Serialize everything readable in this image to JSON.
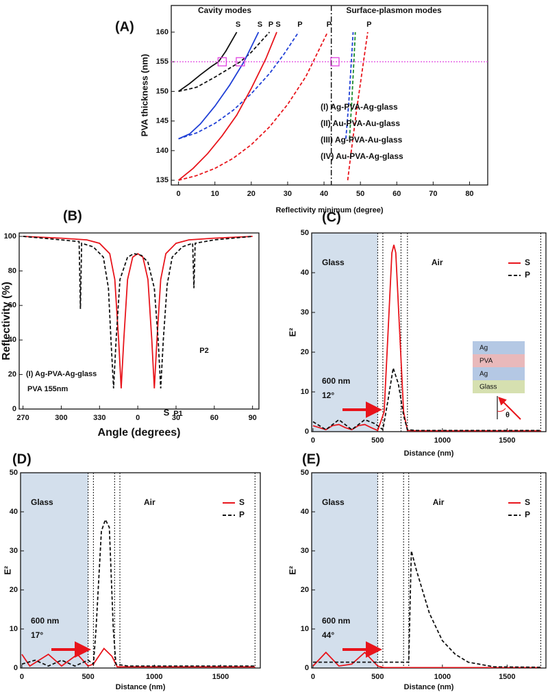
{
  "chart_data": [
    {
      "type": "line",
      "panel": "(A)",
      "x_label": "Reflectivity minimum (degree)",
      "y_label": "PVA thickness (nm)",
      "xlim": [
        -2,
        85
      ],
      "ylim": [
        134.2,
        164.5
      ],
      "xticks": [
        0,
        10,
        20,
        30,
        40,
        50,
        60,
        70,
        80
      ],
      "yticks": [
        135,
        140,
        145,
        150,
        155,
        160
      ],
      "headers": [
        "Cavity modes",
        "Surface-plasmon modes"
      ],
      "legend": [
        {
          "text": "(I) Ag-PVA-Ag-glass",
          "color": "#111111"
        },
        {
          "text": "(II) Au-PVA-Au-glass",
          "color": "#e8141b"
        },
        {
          "text": "(III) Ag-PVA-Au-glass",
          "color": "#1f3fd6"
        },
        {
          "text": "(IV) Au-PVA-Ag-glass",
          "color": "#1a8a2a"
        }
      ],
      "vline": 42,
      "hline": 155,
      "markers": {
        "x": [
          12,
          17,
          43
        ],
        "y": [
          155,
          155,
          155
        ]
      },
      "series": [
        {
          "label": "S",
          "color": "#111111",
          "dashed": false,
          "x": [
            0,
            3,
            6,
            9,
            11,
            13,
            16
          ],
          "values": [
            150,
            151.3,
            152.8,
            154.2,
            155,
            156.8,
            160
          ]
        },
        {
          "label": "P",
          "color": "#111111",
          "dashed": true,
          "x": [
            0,
            5,
            10,
            14,
            17,
            20,
            25
          ],
          "values": [
            150,
            150.7,
            152.4,
            153.9,
            155,
            156.6,
            160
          ]
        },
        {
          "label": "S",
          "color": "#1f3fd6",
          "dashed": false,
          "x": [
            0,
            3,
            6,
            10,
            14,
            18,
            22
          ],
          "values": [
            142,
            142.8,
            144.5,
            147.5,
            151,
            155,
            160
          ]
        },
        {
          "label": "P",
          "color": "#1f3fd6",
          "dashed": true,
          "x": [
            0,
            5,
            10,
            15,
            20,
            25,
            29,
            33
          ],
          "values": [
            142,
            143,
            144.6,
            146.8,
            149.6,
            153,
            156.3,
            160
          ]
        },
        {
          "label": "S",
          "color": "#e8141b",
          "dashed": false,
          "x": [
            0,
            4,
            8,
            12,
            16,
            20,
            24,
            27
          ],
          "values": [
            135,
            137,
            139.5,
            142.5,
            146,
            150.5,
            155.5,
            160
          ]
        },
        {
          "label": "P",
          "color": "#e8141b",
          "dashed": true,
          "x": [
            0,
            5,
            10,
            15,
            20,
            25,
            30,
            35,
            41
          ],
          "values": [
            135,
            135.8,
            137,
            138.7,
            141,
            144,
            147.8,
            152.5,
            160
          ]
        },
        {
          "label": "P",
          "color": "#e8141b",
          "dashed": true,
          "x": [
            46.5,
            47.5,
            49,
            50.5,
            52
          ],
          "values": [
            135,
            140,
            147,
            153.5,
            160
          ]
        },
        {
          "color": "#1f3fd6",
          "dashed": true,
          "x": [
            46,
            46.8,
            47.5,
            48
          ],
          "values": [
            142,
            148,
            155,
            160
          ]
        },
        {
          "color": "#1a8a2a",
          "dashed": true,
          "x": [
            47,
            47.6,
            48.2,
            48.6
          ],
          "values": [
            142,
            148,
            155,
            160
          ]
        }
      ]
    },
    {
      "type": "line",
      "panel": "(B)",
      "x_label": "Angle (degrees)",
      "y_label": "Reflectivity (%)",
      "xlim": [
        -93,
        95
      ],
      "ylim": [
        0,
        102
      ],
      "xticks": [
        {
          "value": -90,
          "label": "270"
        },
        {
          "value": -60,
          "label": "300"
        },
        {
          "value": -30,
          "label": "330"
        },
        0,
        30,
        60,
        90
      ],
      "yticks": [
        0,
        20,
        40,
        60,
        80,
        100
      ],
      "annotations": [
        "S",
        "P1",
        "P2",
        "(I) Ag-PVA-Ag-glass",
        "PVA 155nm"
      ],
      "series": [
        {
          "color": "#e8141b",
          "dashed": false,
          "x": [
            -90,
            -60,
            -40,
            -30,
            -22,
            -18,
            -15,
            -13,
            -11,
            -8,
            -4,
            0,
            4,
            8,
            11,
            13,
            15,
            18,
            22,
            30,
            40,
            60,
            90
          ],
          "values": [
            100,
            99,
            98,
            96,
            90,
            75,
            40,
            12,
            40,
            75,
            88,
            90,
            88,
            75,
            40,
            12,
            40,
            75,
            90,
            96,
            98,
            99,
            100
          ]
        },
        {
          "color": "#111111",
          "dashed": true,
          "x": [
            -90,
            -60,
            -46,
            -45,
            -44,
            -35,
            -27,
            -23,
            -21,
            -19,
            -17,
            -14,
            -8,
            -3,
            3,
            8,
            13,
            16,
            18,
            20,
            23,
            27,
            35,
            43,
            44,
            45,
            60,
            90
          ],
          "values": [
            100,
            98,
            97,
            58,
            96,
            94,
            88,
            70,
            40,
            12,
            40,
            75,
            88,
            90,
            89,
            85,
            70,
            40,
            12,
            40,
            72,
            88,
            94,
            96,
            70,
            96,
            98,
            100
          ]
        }
      ]
    },
    {
      "type": "line",
      "panel": "(C)",
      "x_label": "Distance (nm)",
      "y_label": "E²",
      "xlim": [
        -10,
        1800
      ],
      "ylim": [
        0,
        50
      ],
      "xticks": [
        0,
        500,
        1000,
        1500
      ],
      "yticks": [
        0,
        10,
        20,
        30,
        40,
        50
      ],
      "glass_label": "Glass",
      "air_label": "Air",
      "wavelength": "600 nm",
      "angle": "12°",
      "boundaries": [
        500,
        540,
        680,
        730,
        1760
      ],
      "layers": [
        "Ag",
        "PVA",
        "Ag",
        "Glass"
      ],
      "theta": "θ",
      "series": [
        {
          "name": "S",
          "color": "#e8141b",
          "dashed": false,
          "x": [
            0,
            50,
            100,
            150,
            200,
            250,
            300,
            350,
            400,
            450,
            500,
            550,
            580,
            610,
            625,
            640,
            670,
            700,
            730,
            800,
            1760
          ],
          "values": [
            1.5,
            1,
            0.5,
            1.5,
            1.8,
            1,
            0.5,
            1.5,
            1.8,
            1,
            0.3,
            5,
            25,
            45,
            47,
            45,
            25,
            5,
            0.3,
            0.2,
            0.2
          ]
        },
        {
          "name": "P",
          "color": "#111111",
          "dashed": true,
          "x": [
            0,
            100,
            200,
            300,
            400,
            480,
            540,
            580,
            620,
            660,
            700,
            730,
            800,
            1760
          ],
          "values": [
            2.5,
            0.5,
            3,
            0.5,
            3,
            2,
            0.5,
            8,
            16,
            12,
            4,
            0.5,
            0.3,
            0.3
          ]
        }
      ]
    },
    {
      "type": "line",
      "panel": "(D)",
      "x_label": "Distance (nm)",
      "y_label": "E²",
      "xlim": [
        -10,
        1800
      ],
      "ylim": [
        0,
        50
      ],
      "xticks": [
        0,
        500,
        1000,
        1500
      ],
      "yticks": [
        0,
        10,
        20,
        30,
        40,
        50
      ],
      "glass_label": "Glass",
      "air_label": "Air",
      "wavelength": "600 nm",
      "angle": "17°",
      "boundaries": [
        500,
        540,
        700,
        740,
        1760
      ],
      "series": [
        {
          "name": "S",
          "color": "#e8141b",
          "dashed": false,
          "x": [
            0,
            60,
            200,
            300,
            420,
            500,
            540,
            620,
            680,
            720,
            1760
          ],
          "values": [
            3.5,
            0.5,
            3.5,
            0.5,
            3.5,
            0.5,
            1,
            5,
            3,
            0.3,
            0.3
          ]
        },
        {
          "name": "P",
          "color": "#111111",
          "dashed": true,
          "x": [
            0,
            100,
            200,
            300,
            400,
            500,
            540,
            560,
            600,
            630,
            660,
            690,
            710,
            800,
            1760
          ],
          "values": [
            1,
            2,
            0.5,
            2,
            0.5,
            2,
            1,
            10,
            35,
            38,
            36,
            10,
            1,
            0.5,
            0.5
          ]
        }
      ]
    },
    {
      "type": "line",
      "panel": "(E)",
      "x_label": "Distance (nm)",
      "y_label": "E²",
      "xlim": [
        -10,
        1800
      ],
      "ylim": [
        0,
        50
      ],
      "xticks": [
        0,
        500,
        1000,
        1500
      ],
      "yticks": [
        0,
        10,
        20,
        30,
        40,
        50
      ],
      "glass_label": "Glass",
      "air_label": "Air",
      "wavelength": "600 nm",
      "angle": "44°",
      "boundaries": [
        500,
        540,
        700,
        740,
        1760
      ],
      "series": [
        {
          "name": "S",
          "color": "#e8141b",
          "dashed": false,
          "x": [
            0,
            100,
            200,
            300,
            400,
            500,
            550,
            1760
          ],
          "values": [
            0.5,
            4,
            0.5,
            1,
            4,
            0.5,
            0.1,
            0.1
          ]
        },
        {
          "name": "P",
          "color": "#111111",
          "dashed": true,
          "x": [
            0,
            500,
            700,
            740,
            760,
            800,
            900,
            1000,
            1100,
            1200,
            1400,
            1760
          ],
          "values": [
            1.5,
            1.5,
            1.5,
            1.5,
            30,
            25,
            14,
            7,
            3.5,
            1.5,
            0.3,
            0.2
          ]
        }
      ]
    }
  ]
}
